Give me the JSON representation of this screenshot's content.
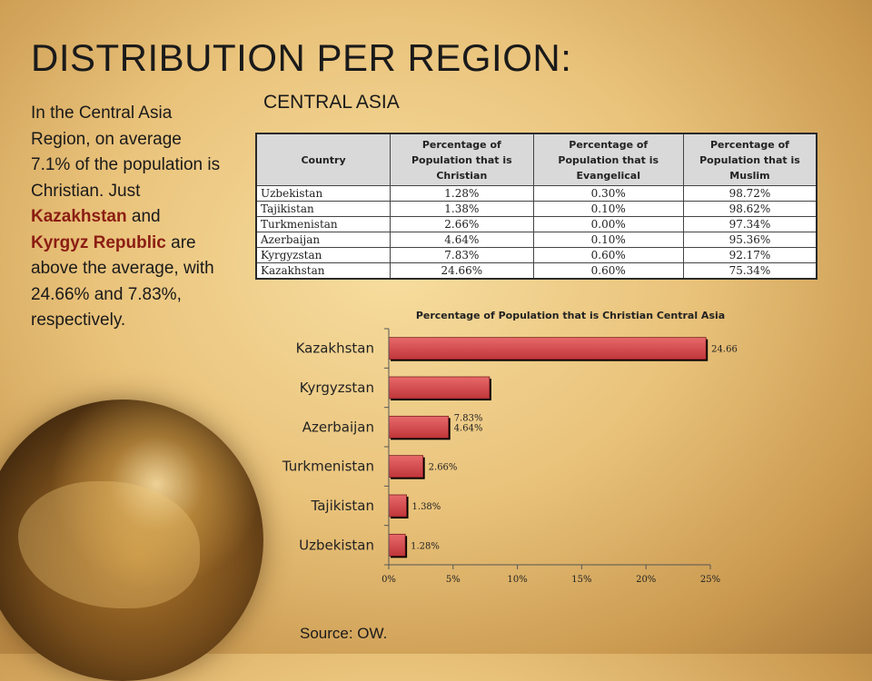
{
  "slide": {
    "title": "DISTRIBUTION PER REGION:",
    "subtitle": "CENTRAL ASIA",
    "source": "Source: OW."
  },
  "body": {
    "p1": "In the Central Asia Region, on average 7.1% of the population is Christian. Just ",
    "kazakhstan": "Kazakhstan",
    "p2": " and ",
    "kyrgyz": "Kyrgyz Republic",
    "p3": " are above the average, with 24.66% and 7.83%, respectively.",
    "highlight_color": "#8b1d13"
  },
  "table": {
    "headers": [
      "Country",
      "Percentage of Population that is Christian",
      "Percentage of Population that is Evangelical",
      "Percentage of Population that is Muslim"
    ],
    "rows": [
      [
        "Uzbekistan",
        "1.28%",
        "0.30%",
        "98.72%"
      ],
      [
        "Tajikistan",
        "1.38%",
        "0.10%",
        "98.62%"
      ],
      [
        "Turkmenistan",
        "2.66%",
        "0.00%",
        "97.34%"
      ],
      [
        "Azerbaijan",
        "4.64%",
        "0.10%",
        "95.36%"
      ],
      [
        "Kyrgyzstan",
        "7.83%",
        "0.60%",
        "92.17%"
      ],
      [
        "Kazakhstan",
        "24.66%",
        "0.60%",
        "75.34%"
      ]
    ]
  },
  "chart_data": {
    "type": "bar",
    "orientation": "horizontal",
    "title": "Percentage of Population that is Christian Central Asia",
    "categories": [
      "Kazakhstan",
      "Kyrgyzstan",
      "Azerbaijan",
      "Turkmenistan",
      "Tajikistan",
      "Uzbekistan"
    ],
    "values": [
      24.66,
      7.83,
      4.64,
      2.66,
      1.38,
      1.28
    ],
    "data_labels": [
      "24.66%",
      "",
      "4.64%",
      "2.66%",
      "1.38%",
      "1.28%"
    ],
    "annotations": [
      {
        "text": "7.83%",
        "category": "Azerbaijan"
      }
    ],
    "xlim": [
      0,
      25
    ],
    "xticks": [
      0,
      5,
      10,
      15,
      20,
      25
    ],
    "xtick_labels": [
      "0%",
      "5%",
      "10%",
      "15%",
      "20%",
      "25%"
    ],
    "bar_color": "#c0363a",
    "grid": false,
    "legend": false
  }
}
